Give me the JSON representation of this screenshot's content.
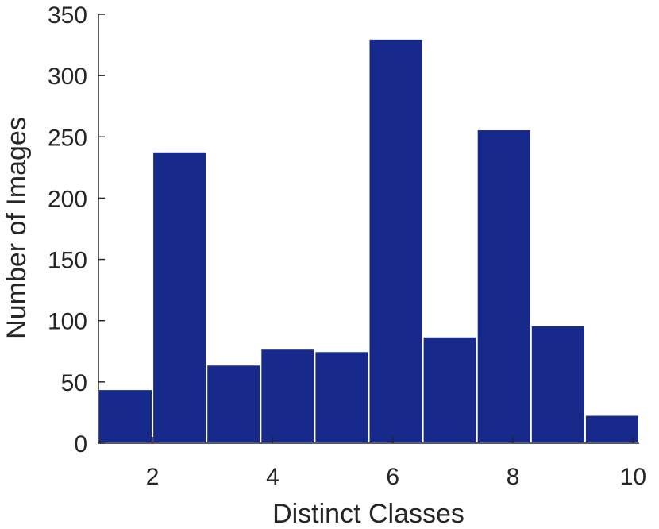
{
  "chart_data": {
    "type": "bar",
    "subtype": "histogram",
    "xlabel": "Distinct Classes",
    "ylabel": "Number of Images",
    "xlim": [
      1.1,
      10.1
    ],
    "ylim": [
      0,
      350
    ],
    "xticks": [
      2,
      4,
      6,
      8,
      10
    ],
    "yticks": [
      0,
      50,
      100,
      150,
      200,
      250,
      300,
      350
    ],
    "bins": [
      {
        "x0": 1.1,
        "x1": 2.0,
        "value": 44
      },
      {
        "x0": 2.0,
        "x1": 2.9,
        "value": 238
      },
      {
        "x0": 2.9,
        "x1": 3.8,
        "value": 64
      },
      {
        "x0": 3.8,
        "x1": 4.7,
        "value": 77
      },
      {
        "x0": 4.7,
        "x1": 5.6,
        "value": 75
      },
      {
        "x0": 5.6,
        "x1": 6.5,
        "value": 330
      },
      {
        "x0": 6.5,
        "x1": 7.4,
        "value": 87
      },
      {
        "x0": 7.4,
        "x1": 8.3,
        "value": 256
      },
      {
        "x0": 8.3,
        "x1": 9.2,
        "value": 96
      },
      {
        "x0": 9.2,
        "x1": 10.1,
        "value": 23
      }
    ],
    "bar_color": "#172a8b",
    "edge_color": "#ffffff",
    "axis_color": "#262626",
    "grid": false
  }
}
